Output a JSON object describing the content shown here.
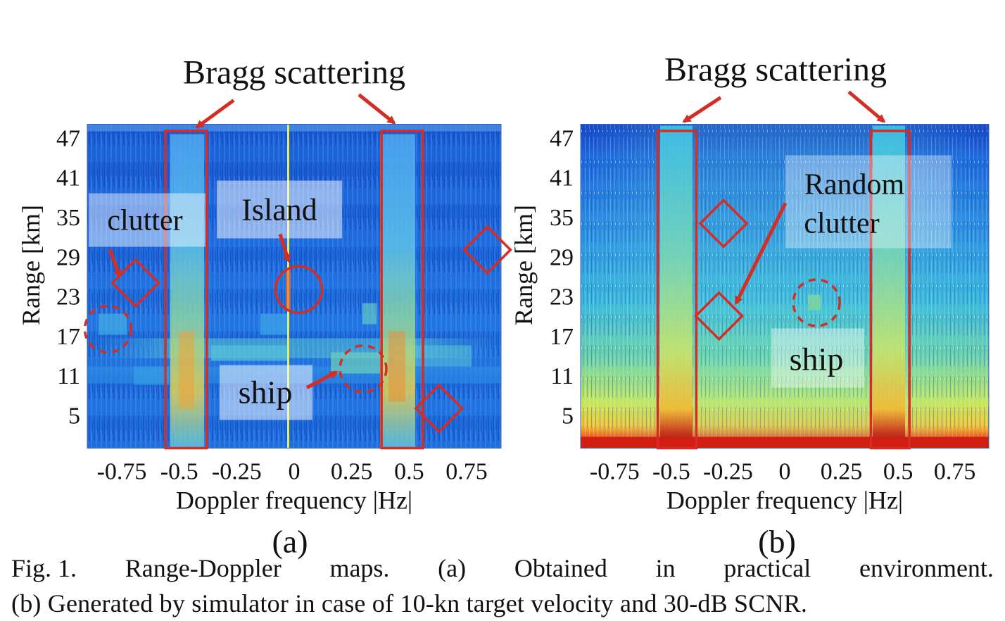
{
  "chart_data": [
    {
      "type": "heatmap",
      "panel_label": "(a)",
      "top_label": "Bragg scattering",
      "xlabel": "Doppler frequency |Hz|",
      "ylabel": "Range [km]",
      "xlim": [
        -0.9,
        0.9
      ],
      "ylim": [
        0,
        49
      ],
      "xticks": [
        -0.75,
        -0.5,
        -0.25,
        0,
        0.25,
        0.5,
        0.75
      ],
      "xtick_labels": [
        "-0.75",
        "-0.5",
        "-0.25",
        "0",
        "0.25",
        "0.5",
        "0.75"
      ],
      "yticks": [
        47,
        41,
        35,
        29,
        23,
        17,
        11,
        5
      ],
      "ytick_labels": [
        "47",
        "41",
        "35",
        "29",
        "23",
        "17",
        "11",
        "5"
      ],
      "bragg_lines_hz": [
        -0.47,
        0.47
      ],
      "annotations": [
        {
          "text": "clutter",
          "x": -0.75,
          "y": 34.5
        },
        {
          "text": "Island",
          "x": -0.05,
          "y": 35.5
        },
        {
          "text": "ship",
          "x": -0.12,
          "y": 8.5
        }
      ],
      "markers": {
        "bragg_boxes": [
          {
            "x0": -0.56,
            "x1": -0.38,
            "y0": 0,
            "y1": 48
          },
          {
            "x0": 0.38,
            "x1": 0.56,
            "y0": 0,
            "y1": 48
          }
        ],
        "clutter_diamonds": [
          {
            "x": -0.69,
            "y": 25
          },
          {
            "x": 0.63,
            "y": 6
          },
          {
            "x": 0.84,
            "y": 30
          }
        ],
        "ship_circles": [
          {
            "x": -0.81,
            "y": 18
          },
          {
            "x": 0.3,
            "y": 12
          }
        ],
        "island_circle": {
          "x": 0.02,
          "y": 24
        }
      }
    },
    {
      "type": "heatmap",
      "panel_label": "(b)",
      "top_label": "Bragg scattering",
      "xlabel": "Doppler frequency |Hz|",
      "ylabel": "Range [km]",
      "xlim": [
        -0.9,
        0.9
      ],
      "ylim": [
        0,
        49
      ],
      "xticks": [
        -0.75,
        -0.5,
        -0.25,
        0,
        0.25,
        0.5,
        0.75
      ],
      "xtick_labels": [
        "-0.75",
        "-0.5",
        "-0.25",
        "0",
        "0.25",
        "0.5",
        "0.75"
      ],
      "yticks": [
        47,
        41,
        35,
        29,
        23,
        17,
        11,
        5
      ],
      "ytick_labels": [
        "47",
        "41",
        "35",
        "29",
        "23",
        "17",
        "11",
        "5"
      ],
      "bragg_lines_hz": [
        -0.47,
        0.47
      ],
      "annotations": [
        {
          "text": "Random",
          "x": 0.32,
          "y": 39.5
        },
        {
          "text": "clutter",
          "x": 0.28,
          "y": 33.5
        },
        {
          "text": "ship",
          "x": 0.15,
          "y": 12.5
        }
      ],
      "markers": {
        "bragg_boxes": [
          {
            "x0": -0.56,
            "x1": -0.39,
            "y0": 0,
            "y1": 48
          },
          {
            "x0": 0.38,
            "x1": 0.55,
            "y0": 0,
            "y1": 48
          }
        ],
        "clutter_diamonds": [
          {
            "x": -0.27,
            "y": 34
          },
          {
            "x": -0.29,
            "y": 20
          }
        ],
        "ship_circles": [
          {
            "x": 0.14,
            "y": 22
          }
        ]
      }
    }
  ],
  "caption": {
    "line1": [
      "Fig. 1.",
      "Range-Doppler",
      "maps.",
      "(a)",
      "Obtained",
      "in",
      "practical",
      "environment."
    ],
    "line2": "(b) Generated by simulator in case of 10-kn target velocity and 30-dB SCNR."
  },
  "colors": {
    "annotation_red": "#d42e24",
    "label_box": "#ffffff"
  }
}
